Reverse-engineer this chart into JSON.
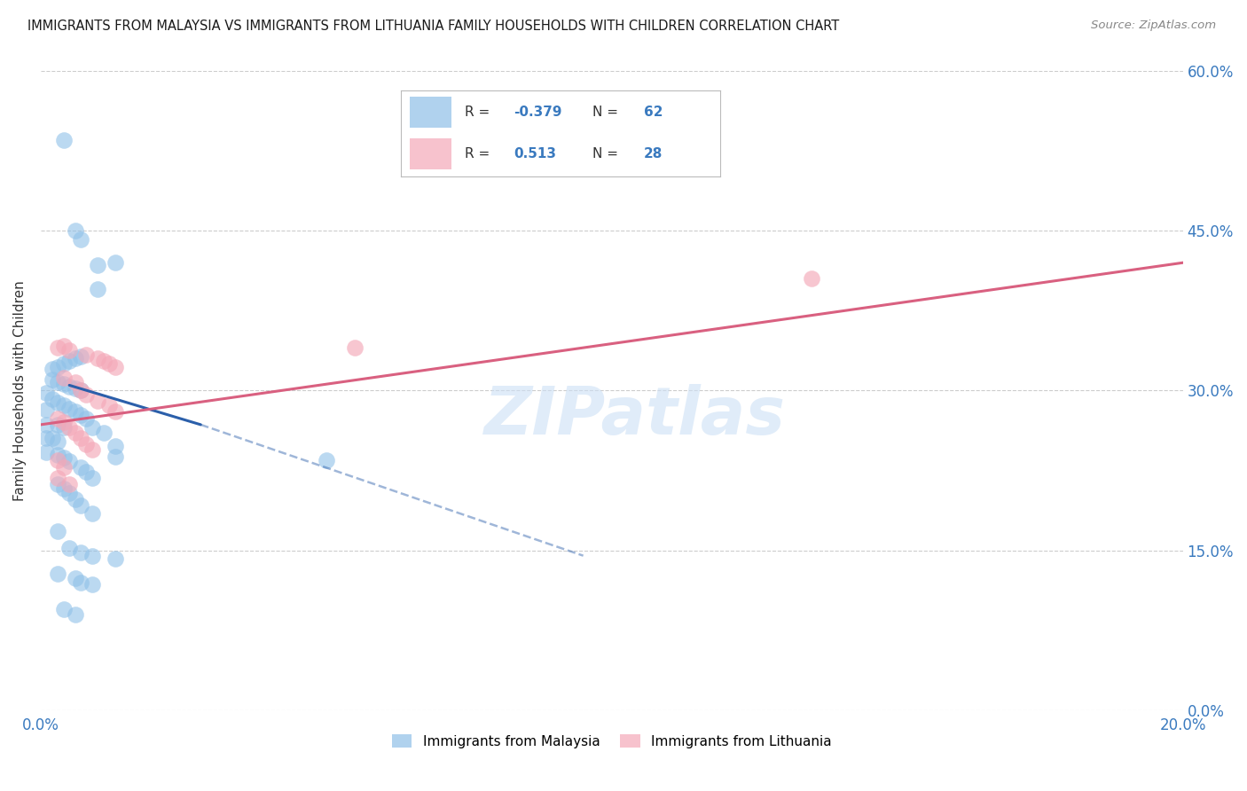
{
  "title": "IMMIGRANTS FROM MALAYSIA VS IMMIGRANTS FROM LITHUANIA FAMILY HOUSEHOLDS WITH CHILDREN CORRELATION CHART",
  "source": "Source: ZipAtlas.com",
  "ylabel": "Family Households with Children",
  "xmin": 0.0,
  "xmax": 0.2,
  "ymin": 0.0,
  "ymax": 0.6,
  "ytick_positions": [
    0.0,
    0.15,
    0.3,
    0.45,
    0.6
  ],
  "ytick_labels_right": [
    "0.0%",
    "15.0%",
    "30.0%",
    "45.0%",
    "60.0%"
  ],
  "xtick_positions": [
    0.0,
    0.2
  ],
  "xtick_labels": [
    "0.0%",
    "20.0%"
  ],
  "malaysia_color": "#8fc0e8",
  "lithuania_color": "#f4a8b8",
  "malaysia_line_color": "#2b5faa",
  "lithuania_line_color": "#d96080",
  "malaysia_line_solid": [
    [
      0.005,
      0.305
    ],
    [
      0.028,
      0.268
    ]
  ],
  "malaysia_line_dashed": [
    [
      0.028,
      0.268
    ],
    [
      0.095,
      0.145
    ]
  ],
  "lithuania_line": [
    [
      0.0,
      0.268
    ],
    [
      0.2,
      0.42
    ]
  ],
  "watermark": "ZIPatlas",
  "legend_r1": "R = -0.379",
  "legend_n1": "N = 62",
  "legend_r2": "R =  0.513",
  "legend_n2": "N = 28",
  "malaysia_points": [
    [
      0.004,
      0.535
    ],
    [
      0.006,
      0.45
    ],
    [
      0.007,
      0.442
    ],
    [
      0.01,
      0.418
    ],
    [
      0.013,
      0.42
    ],
    [
      0.01,
      0.395
    ],
    [
      0.002,
      0.32
    ],
    [
      0.003,
      0.322
    ],
    [
      0.004,
      0.325
    ],
    [
      0.005,
      0.328
    ],
    [
      0.006,
      0.33
    ],
    [
      0.007,
      0.332
    ],
    [
      0.002,
      0.31
    ],
    [
      0.003,
      0.308
    ],
    [
      0.004,
      0.306
    ],
    [
      0.005,
      0.304
    ],
    [
      0.006,
      0.302
    ],
    [
      0.007,
      0.3
    ],
    [
      0.002,
      0.292
    ],
    [
      0.003,
      0.289
    ],
    [
      0.004,
      0.286
    ],
    [
      0.005,
      0.283
    ],
    [
      0.006,
      0.28
    ],
    [
      0.007,
      0.277
    ],
    [
      0.008,
      0.274
    ],
    [
      0.003,
      0.268
    ],
    [
      0.004,
      0.265
    ],
    [
      0.009,
      0.265
    ],
    [
      0.011,
      0.26
    ],
    [
      0.002,
      0.255
    ],
    [
      0.003,
      0.252
    ],
    [
      0.013,
      0.248
    ],
    [
      0.003,
      0.24
    ],
    [
      0.004,
      0.237
    ],
    [
      0.005,
      0.234
    ],
    [
      0.013,
      0.238
    ],
    [
      0.007,
      0.228
    ],
    [
      0.008,
      0.224
    ],
    [
      0.009,
      0.218
    ],
    [
      0.003,
      0.212
    ],
    [
      0.004,
      0.208
    ],
    [
      0.005,
      0.204
    ],
    [
      0.006,
      0.198
    ],
    [
      0.007,
      0.192
    ],
    [
      0.009,
      0.185
    ],
    [
      0.003,
      0.168
    ],
    [
      0.005,
      0.152
    ],
    [
      0.007,
      0.148
    ],
    [
      0.009,
      0.145
    ],
    [
      0.013,
      0.142
    ],
    [
      0.003,
      0.128
    ],
    [
      0.006,
      0.124
    ],
    [
      0.007,
      0.12
    ],
    [
      0.009,
      0.118
    ],
    [
      0.004,
      0.095
    ],
    [
      0.006,
      0.09
    ],
    [
      0.05,
      0.235
    ],
    [
      0.001,
      0.298
    ],
    [
      0.001,
      0.282
    ],
    [
      0.001,
      0.268
    ],
    [
      0.001,
      0.255
    ],
    [
      0.001,
      0.242
    ]
  ],
  "lithuania_points": [
    [
      0.003,
      0.34
    ],
    [
      0.004,
      0.342
    ],
    [
      0.005,
      0.338
    ],
    [
      0.008,
      0.334
    ],
    [
      0.01,
      0.33
    ],
    [
      0.011,
      0.328
    ],
    [
      0.012,
      0.325
    ],
    [
      0.013,
      0.322
    ],
    [
      0.004,
      0.312
    ],
    [
      0.006,
      0.308
    ],
    [
      0.007,
      0.3
    ],
    [
      0.008,
      0.296
    ],
    [
      0.01,
      0.29
    ],
    [
      0.012,
      0.286
    ],
    [
      0.013,
      0.28
    ],
    [
      0.003,
      0.274
    ],
    [
      0.004,
      0.27
    ],
    [
      0.005,
      0.265
    ],
    [
      0.006,
      0.26
    ],
    [
      0.007,
      0.255
    ],
    [
      0.008,
      0.25
    ],
    [
      0.009,
      0.245
    ],
    [
      0.003,
      0.235
    ],
    [
      0.004,
      0.228
    ],
    [
      0.003,
      0.218
    ],
    [
      0.005,
      0.212
    ],
    [
      0.055,
      0.34
    ],
    [
      0.135,
      0.405
    ]
  ]
}
